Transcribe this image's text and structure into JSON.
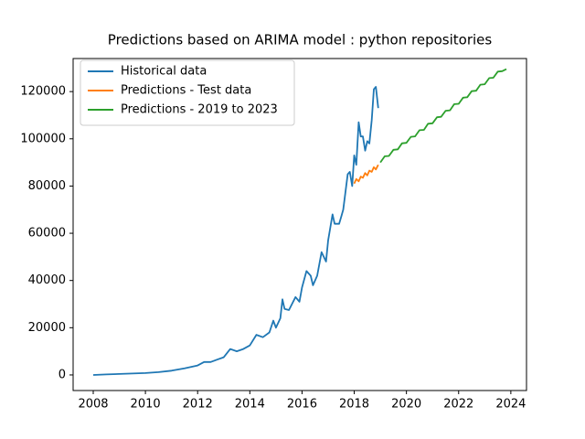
{
  "chart_data": {
    "type": "line",
    "title": "Predictions based on ARIMA model : python repositories",
    "xlim": [
      2007.23,
      2024.6
    ],
    "xticks": [
      2008,
      2010,
      2012,
      2014,
      2016,
      2018,
      2020,
      2022,
      2024
    ],
    "ylim": [
      -6600,
      134000
    ],
    "yticks": [
      0,
      20000,
      40000,
      60000,
      80000,
      100000,
      120000
    ],
    "legend": "upper left",
    "series": [
      {
        "name": "Historical data",
        "color": "#1f77b4",
        "x": [
          2008.0,
          2008.5,
          2009.0,
          2009.5,
          2010.0,
          2010.5,
          2011.0,
          2011.5,
          2012.0,
          2012.25,
          2012.5,
          2012.75,
          2013.0,
          2013.25,
          2013.5,
          2013.75,
          2014.0,
          2014.25,
          2014.5,
          2014.75,
          2014.9,
          2015.0,
          2015.17,
          2015.25,
          2015.33,
          2015.5,
          2015.75,
          2015.9,
          2016.0,
          2016.17,
          2016.33,
          2016.42,
          2016.58,
          2016.75,
          2016.92,
          2017.0,
          2017.17,
          2017.25,
          2017.42,
          2017.5,
          2017.58,
          2017.75,
          2017.83,
          2017.92,
          2018.0,
          2018.08,
          2018.17,
          2018.25,
          2018.33,
          2018.42,
          2018.5,
          2018.58,
          2018.67,
          2018.75,
          2018.83,
          2018.92
        ],
        "values": [
          0,
          200,
          400,
          600,
          800,
          1200,
          1800,
          2800,
          4000,
          5500,
          5500,
          6500,
          7500,
          11000,
          10000,
          11000,
          12500,
          17000,
          16000,
          18000,
          23000,
          20000,
          24000,
          32000,
          28000,
          27500,
          33000,
          31000,
          37000,
          44000,
          42000,
          38000,
          42000,
          52000,
          48000,
          57000,
          68000,
          64000,
          64000,
          67000,
          70000,
          85000,
          86000,
          80000,
          93000,
          89000,
          107000,
          101000,
          101000,
          95000,
          99000,
          98000,
          108000,
          121000,
          122000,
          113000
        ]
      },
      {
        "name": "Predictions - Test data",
        "color": "#ff7f0e",
        "x": [
          2018.0,
          2018.08,
          2018.17,
          2018.25,
          2018.33,
          2018.42,
          2018.5,
          2018.58,
          2018.67,
          2018.75,
          2018.83,
          2018.92
        ],
        "values": [
          81000,
          83000,
          82000,
          84000,
          83500,
          85500,
          84500,
          86500,
          86000,
          88000,
          87000,
          89000
        ]
      },
      {
        "name": "Predictions - 2019 to 2023",
        "color": "#2ca02c",
        "x": [
          2019.0,
          2019.17,
          2019.33,
          2019.5,
          2019.67,
          2019.83,
          2020.0,
          2020.17,
          2020.33,
          2020.5,
          2020.67,
          2020.83,
          2021.0,
          2021.17,
          2021.33,
          2021.5,
          2021.67,
          2021.83,
          2022.0,
          2022.17,
          2022.33,
          2022.5,
          2022.67,
          2022.83,
          2023.0,
          2023.17,
          2023.33,
          2023.5,
          2023.67,
          2023.83
        ],
        "values": [
          90000,
          92580,
          92760,
          95340,
          95520,
          98100,
          98280,
          100860,
          101040,
          103620,
          103800,
          106380,
          106560,
          109140,
          109320,
          111900,
          112080,
          114660,
          114840,
          117420,
          117600,
          120180,
          120360,
          122940,
          123120,
          125700,
          125880,
          128460,
          128640,
          129500
        ]
      }
    ]
  }
}
